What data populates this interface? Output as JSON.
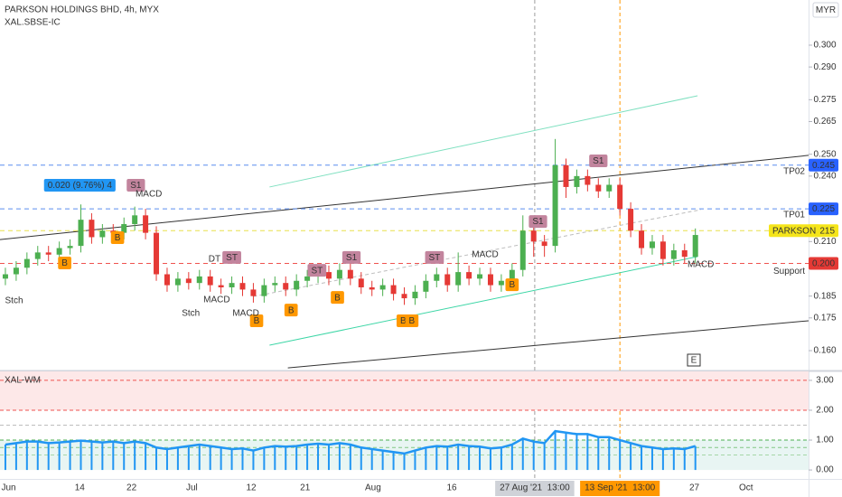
{
  "chart_data": [
    {
      "type": "candlestick",
      "title": "PARKSON HOLDINGS BHD, 4h, MYX",
      "subtitle": "XAL.SBSE-IC",
      "currency": "MYR",
      "events_button": "E",
      "up_color": "#4caf50",
      "down_color": "#e53935",
      "xlim": [
        -0.5,
        74.5
      ],
      "ylim": [
        0.1509,
        0.3207
      ],
      "grid": false,
      "xticks": [
        {
          "value": 0.3,
          "label": "Jun"
        },
        {
          "value": 6.9,
          "label": "14"
        },
        {
          "value": 11.7,
          "label": "22"
        },
        {
          "value": 17.3,
          "label": "Jul"
        },
        {
          "value": 22.8,
          "label": "12"
        },
        {
          "value": 27.8,
          "label": "21"
        },
        {
          "value": 34.1,
          "label": "Aug"
        },
        {
          "value": 41.4,
          "label": "16"
        },
        {
          "value": 49.1,
          "label": "27 Aug '21  13:00",
          "highlight": "#cfd2d8",
          "line_color": "#9e9e9e"
        },
        {
          "value": 57,
          "label": "13 Sep '21  13:00",
          "highlight": "#ff9800",
          "line_color": "#ff9800"
        },
        {
          "value": 63.9,
          "label": "27"
        },
        {
          "value": 68.7,
          "label": "Oct"
        }
      ],
      "yticks": [
        {
          "value": 0.16,
          "label": "0.160"
        },
        {
          "value": 0.175,
          "label": "0.175"
        },
        {
          "value": 0.185,
          "label": "0.185"
        },
        {
          "value": 0.21,
          "label": "0.210"
        },
        {
          "value": 0.24,
          "label": "0.240"
        },
        {
          "value": 0.25,
          "label": "0.250"
        },
        {
          "value": 0.265,
          "label": "0.265"
        },
        {
          "value": 0.275,
          "label": "0.275"
        },
        {
          "value": 0.29,
          "label": "0.290"
        },
        {
          "value": 0.3,
          "label": "0.300"
        }
      ],
      "open": [
        0.193,
        0.195,
        0.198,
        0.202,
        0.205,
        0.204,
        0.207,
        0.208,
        0.22,
        0.212,
        0.215,
        0.214,
        0.218,
        0.222,
        0.214,
        0.195,
        0.19,
        0.193,
        0.191,
        0.194,
        0.19,
        0.189,
        0.191,
        0.188,
        0.185,
        0.19,
        0.191,
        0.188,
        0.192,
        0.194,
        0.196,
        0.193,
        0.197,
        0.193,
        0.189,
        0.188,
        0.19,
        0.186,
        0.184,
        0.187,
        0.192,
        0.195,
        0.19,
        0.196,
        0.193,
        0.195,
        0.19,
        0.192,
        0.197,
        0.215,
        0.21,
        0.208,
        0.245,
        0.235,
        0.24,
        0.236,
        0.233,
        0.236,
        0.225,
        0.215,
        0.207,
        0.21,
        0.202,
        0.206,
        0.203
      ],
      "high": [
        0.198,
        0.201,
        0.205,
        0.208,
        0.208,
        0.21,
        0.211,
        0.227,
        0.223,
        0.218,
        0.218,
        0.221,
        0.226,
        0.225,
        0.217,
        0.198,
        0.196,
        0.196,
        0.197,
        0.197,
        0.193,
        0.194,
        0.194,
        0.191,
        0.193,
        0.194,
        0.194,
        0.195,
        0.197,
        0.199,
        0.199,
        0.2,
        0.2,
        0.196,
        0.192,
        0.193,
        0.193,
        0.189,
        0.19,
        0.195,
        0.198,
        0.198,
        0.205,
        0.199,
        0.198,
        0.198,
        0.195,
        0.2,
        0.222,
        0.218,
        0.213,
        0.257,
        0.248,
        0.243,
        0.243,
        0.239,
        0.239,
        0.239,
        0.228,
        0.218,
        0.213,
        0.213,
        0.209,
        0.209,
        0.216
      ],
      "low": [
        0.19,
        0.192,
        0.195,
        0.199,
        0.201,
        0.201,
        0.204,
        0.205,
        0.209,
        0.209,
        0.211,
        0.211,
        0.215,
        0.211,
        0.192,
        0.187,
        0.187,
        0.188,
        0.188,
        0.187,
        0.186,
        0.186,
        0.185,
        0.182,
        0.182,
        0.187,
        0.185,
        0.185,
        0.189,
        0.191,
        0.19,
        0.19,
        0.19,
        0.186,
        0.185,
        0.185,
        0.183,
        0.181,
        0.181,
        0.184,
        0.189,
        0.187,
        0.187,
        0.19,
        0.19,
        0.187,
        0.187,
        0.189,
        0.194,
        0.203,
        0.203,
        0.205,
        0.23,
        0.232,
        0.233,
        0.23,
        0.23,
        0.222,
        0.212,
        0.204,
        0.204,
        0.199,
        0.199,
        0.2,
        0.2
      ],
      "close": [
        0.195,
        0.198,
        0.202,
        0.205,
        0.204,
        0.207,
        0.208,
        0.22,
        0.212,
        0.215,
        0.214,
        0.218,
        0.222,
        0.214,
        0.195,
        0.19,
        0.193,
        0.191,
        0.194,
        0.19,
        0.189,
        0.191,
        0.188,
        0.185,
        0.19,
        0.191,
        0.188,
        0.192,
        0.194,
        0.196,
        0.193,
        0.197,
        0.193,
        0.189,
        0.188,
        0.19,
        0.186,
        0.184,
        0.187,
        0.192,
        0.195,
        0.19,
        0.196,
        0.193,
        0.195,
        0.19,
        0.192,
        0.197,
        0.215,
        0.21,
        0.208,
        0.245,
        0.235,
        0.24,
        0.236,
        0.233,
        0.236,
        0.225,
        0.215,
        0.207,
        0.21,
        0.202,
        0.206,
        0.203,
        0.213
      ],
      "hlines": [
        {
          "value": 0.245,
          "value_label": "0.245",
          "name": "TP02",
          "color": "#5b8def",
          "badge_color": "#2962ff",
          "name_color": "#5b8def"
        },
        {
          "value": 0.225,
          "value_label": "0.225",
          "name": "TP01",
          "color": "#5b8def",
          "badge_color": "#2962ff",
          "name_color": "#5b8def"
        },
        {
          "value": 0.215,
          "value_label": "0.215",
          "name": "PARKSON",
          "color": "#e8e04a",
          "badge_color": "#f5e51b",
          "name_color": "#f5e51b"
        },
        {
          "value": 0.2,
          "value_label": "0.200",
          "name": "Support",
          "color": "#ef5350",
          "badge_color": "#e53935",
          "name_color": "#e53935"
        }
      ],
      "trendlines": [
        {
          "x": [
            -0.5,
            74.5
          ],
          "y": [
            0.2109,
            0.2495
          ],
          "color": "#333333"
        },
        {
          "x": [
            26.2,
            74.5
          ],
          "y": [
            0.1521,
            0.1737
          ],
          "color": "#333333"
        },
        {
          "x": [
            24.5,
            64.2
          ],
          "y": [
            0.235,
            0.2768
          ],
          "color": "#7fe0c0"
        },
        {
          "x": [
            24.5,
            64.2
          ],
          "y": [
            0.1625,
            0.2031
          ],
          "color": "#3dd6a6"
        },
        {
          "x": [
            23,
            64.5
          ],
          "y": [
            0.1848,
            0.2246
          ],
          "color": "#bdbdbd",
          "dashed": true
        }
      ],
      "annotations": [
        {
          "x": 6.9,
          "y": 0.2358,
          "text": "0.020 (9.76%) 4",
          "kind": "badge",
          "color": "#2196f3"
        },
        {
          "x": 5.5,
          "y": 0.2002,
          "text": "B",
          "kind": "badge",
          "color": "#ff9800"
        },
        {
          "x": 10.4,
          "y": 0.2118,
          "text": "B",
          "kind": "badge",
          "color": "#ff9800"
        },
        {
          "x": 23.3,
          "y": 0.1737,
          "text": "B",
          "kind": "badge",
          "color": "#ff9800"
        },
        {
          "x": 26.5,
          "y": 0.1786,
          "text": "B",
          "kind": "badge",
          "color": "#ff9800"
        },
        {
          "x": 30.8,
          "y": 0.1844,
          "text": "B",
          "kind": "badge",
          "color": "#ff9800"
        },
        {
          "x": 36.9,
          "y": 0.1737,
          "text": "B",
          "kind": "badge",
          "color": "#ff9800"
        },
        {
          "x": 37.7,
          "y": 0.1737,
          "text": "B",
          "kind": "badge",
          "color": "#ff9800"
        },
        {
          "x": 47,
          "y": 0.1902,
          "text": "B",
          "kind": "badge",
          "color": "#ff9800"
        },
        {
          "x": 12.1,
          "y": 0.2358,
          "text": "S1",
          "kind": "badge",
          "color": "#c2849d"
        },
        {
          "x": 32.1,
          "y": 0.2027,
          "text": "S1",
          "kind": "badge",
          "color": "#c2849d"
        },
        {
          "x": 49.4,
          "y": 0.2192,
          "text": "S1",
          "kind": "badge",
          "color": "#c2849d"
        },
        {
          "x": 55,
          "y": 0.247,
          "text": "S1",
          "kind": "badge",
          "color": "#c2849d"
        },
        {
          "x": 21,
          "y": 0.2027,
          "text": "ST",
          "kind": "badge",
          "color": "#c2849d"
        },
        {
          "x": 28.9,
          "y": 0.1968,
          "text": "ST",
          "kind": "badge",
          "color": "#c2849d"
        },
        {
          "x": 39.8,
          "y": 0.2027,
          "text": "ST",
          "kind": "badge",
          "color": "#c2849d"
        },
        {
          "x": 19.4,
          "y": 0.2019,
          "text": "DT",
          "kind": "text",
          "color": "#2962ff"
        },
        {
          "x": 13.3,
          "y": 0.2317,
          "text": "MACD",
          "kind": "text",
          "color": "#c8d4a8"
        },
        {
          "x": 19.6,
          "y": 0.1832,
          "text": "MACD",
          "kind": "text",
          "color": "#c8d4a8"
        },
        {
          "x": 22.3,
          "y": 0.177,
          "text": "MACD",
          "kind": "text",
          "color": "#c8d4a8"
        },
        {
          "x": 44.5,
          "y": 0.2039,
          "text": "MACD",
          "kind": "text",
          "color": "#c8d4a8"
        },
        {
          "x": 64.5,
          "y": 0.1994,
          "text": "MACD",
          "kind": "text",
          "color": "#c8d4a8"
        },
        {
          "x": 0.8,
          "y": 0.1828,
          "text": "Stch",
          "kind": "text",
          "color": "#c8d4a8"
        },
        {
          "x": 17.2,
          "y": 0.177,
          "text": "Stch",
          "kind": "text",
          "color": "#c8d4a8"
        }
      ]
    },
    {
      "type": "bar",
      "title": "XAL-WM",
      "color": "#2196f3",
      "ylim": [
        -0.3,
        3.3
      ],
      "yticks": [
        {
          "value": 0,
          "label": "0.00"
        },
        {
          "value": 1,
          "label": "1.00"
        },
        {
          "value": 2,
          "label": "2.00"
        },
        {
          "value": 3,
          "label": "3.00"
        }
      ],
      "bands": [
        {
          "from": 2,
          "to": 3.3,
          "color": "#fde8e8"
        },
        {
          "from": 0,
          "to": 1,
          "color": "#e8f5f3"
        }
      ],
      "hlines": [
        {
          "value": 3,
          "color": "#ef5350"
        },
        {
          "value": 2,
          "color": "#ef5350"
        },
        {
          "value": 1.5,
          "color": "#bdbdbd"
        },
        {
          "value": 1,
          "color": "#4caf50"
        },
        {
          "value": 0.75,
          "color": "#81c784"
        },
        {
          "value": 0.5,
          "color": "#a5d6a7"
        }
      ],
      "values": [
        0.85,
        0.9,
        0.95,
        0.95,
        0.9,
        0.92,
        0.95,
        0.98,
        0.95,
        0.92,
        0.95,
        0.9,
        0.95,
        0.9,
        0.75,
        0.7,
        0.75,
        0.8,
        0.85,
        0.8,
        0.75,
        0.7,
        0.72,
        0.65,
        0.75,
        0.8,
        0.78,
        0.8,
        0.85,
        0.88,
        0.85,
        0.9,
        0.85,
        0.75,
        0.7,
        0.65,
        0.6,
        0.55,
        0.65,
        0.75,
        0.8,
        0.78,
        0.85,
        0.8,
        0.78,
        0.72,
        0.75,
        0.85,
        1.05,
        0.95,
        0.9,
        1.3,
        1.25,
        1.2,
        1.2,
        1.1,
        1.1,
        1.0,
        0.9,
        0.8,
        0.75,
        0.7,
        0.72,
        0.7,
        0.8
      ]
    }
  ]
}
